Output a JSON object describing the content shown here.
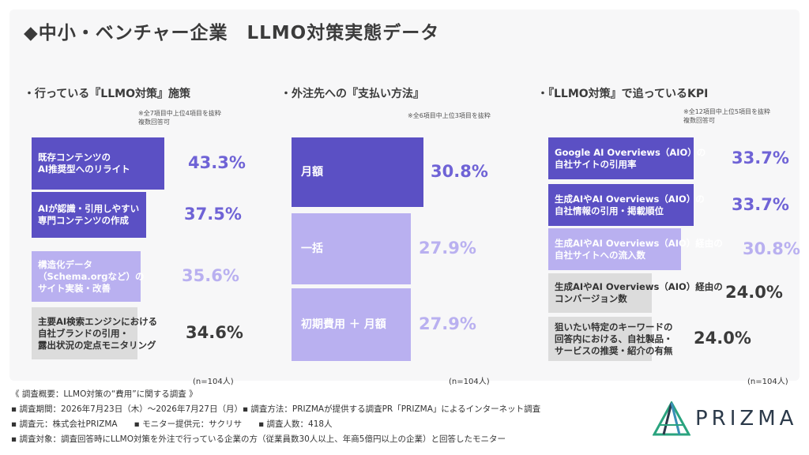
{
  "title": "◆中小・ベンチャー企業　LLMO対策実態データ",
  "colors": {
    "dark": "#5b50c4",
    "mid": "#6f63d6",
    "light": "#b9b0f0",
    "gray": "#dcdcdc",
    "card": "#f7f7f8"
  },
  "panels": [
    {
      "title": "・行っている『LLMO対策』施策",
      "note": [
        "※全7項目中上位4項目を抜粋",
        "複数回答可"
      ],
      "n": "(n=104人)"
    },
    {
      "title": "・外注先への『支払い方法』",
      "note": [
        "※全6項目中上位3項目を抜粋"
      ],
      "n": "(n=104人)"
    },
    {
      "title": "・『LLMO対策』で追っているKPI",
      "note": [
        "※全12項目中上位5項目を抜粋",
        "複数回答可"
      ],
      "n": "(n=104人)"
    }
  ],
  "chart_data": [
    {
      "type": "bar",
      "orientation": "horizontal",
      "categories": [
        "既存コンテンツの\nAI推奨型へのリライト",
        "AIが認識・引用しやすい\n専門コンテンツの作成",
        "構造化データ\n（Schema.orgなど）の\nサイト実装・改善",
        "主要AI検索エンジンにおける\n自社ブランドの引用・\n露出状況の定点モニタリング"
      ],
      "values": [
        43.3,
        37.5,
        35.6,
        34.6
      ],
      "labels": [
        "43.3%",
        "37.5%",
        "35.6%",
        "34.6%"
      ]
    },
    {
      "type": "bar",
      "orientation": "horizontal",
      "categories": [
        "月額",
        "一括",
        "初期費用 ＋ 月額"
      ],
      "values": [
        30.8,
        27.9,
        27.9
      ],
      "labels": [
        "30.8%",
        "27.9%",
        "27.9%"
      ]
    },
    {
      "type": "bar",
      "orientation": "horizontal",
      "categories": [
        "Google AI Overviews（AIO）の\n自社サイトの引用率",
        "生成AIやAI Overviews（AIO）の\n自社情報の引用・掲載順位",
        "生成AIやAI Overviews（AIO）経由の\n自社サイトへの流入数",
        "生成AIやAI Overviews（AIO）経由の\nコンバージョン数",
        "狙いたい特定のキーワードの\n回答内における、自社製品・\nサービスの推奨・紹介の有無"
      ],
      "values": [
        33.7,
        33.7,
        30.8,
        24.0,
        24.0
      ],
      "labels": [
        "33.7%",
        "33.7%",
        "30.8%",
        "24.0%",
        "24.0%"
      ]
    }
  ],
  "footer": {
    "heading": "《 調査概要：LLMO対策の“費用”に関する調査 》",
    "line1": "▪ 調査期間：2026年7月23日（木）〜2026年7月27日（月）▪ 調査方法：PRIZMAが提供する調査PR「PRIZMA」によるインターネット調査",
    "line2": "▪ 調査元：株式会社PRIZMA　　▪ モニター提供元：サクリサ　　▪ 調査人数：418人",
    "line3": "▪ 調査対象：調査回答時にLLMO対策を外注で行っている企業の方（従業員数30人以上、年商5億円以上の企業）と回答したモニター"
  },
  "logo": {
    "text": "PRIZMA",
    "icon": "prizma-logo-icon"
  }
}
